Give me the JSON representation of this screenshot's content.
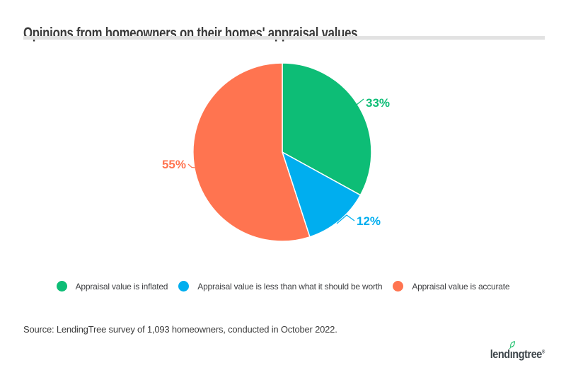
{
  "header": {
    "title": "Opinions from homeowners on their homes' appraisal values"
  },
  "chart_data": {
    "type": "pie",
    "title": "Opinions from homeowners on their homes' appraisal values",
    "start_angle_deg": 0,
    "direction": "clockwise",
    "legend_position": "bottom",
    "slices": [
      {
        "id": "inflated",
        "label": "Appraisal value is inflated",
        "value": 33,
        "display": "33%",
        "color": "#0dbd76"
      },
      {
        "id": "less-than",
        "label": "Appraisal value is less than what it should be worth",
        "value": 12,
        "display": "12%",
        "color": "#00aeef"
      },
      {
        "id": "accurate",
        "label": "Appraisal value is accurate",
        "value": 55,
        "display": "55%",
        "color": "#ff7450"
      }
    ]
  },
  "footer": {
    "source": "Source: LendingTree survey of 1,093 homeowners, conducted in October 2022.",
    "logo": {
      "pre": "lend",
      "dotless_i": "ı",
      "post": "ngtree",
      "trademark": "®"
    }
  },
  "colors": {
    "background": "#ffffff",
    "title_text": "#3b3b3b",
    "divider": "#e2e2e2",
    "legend_text": "#3f4043",
    "source_text": "#3c3c3c",
    "logo_text": "#3e464b",
    "leaf": "#1fc16d"
  }
}
